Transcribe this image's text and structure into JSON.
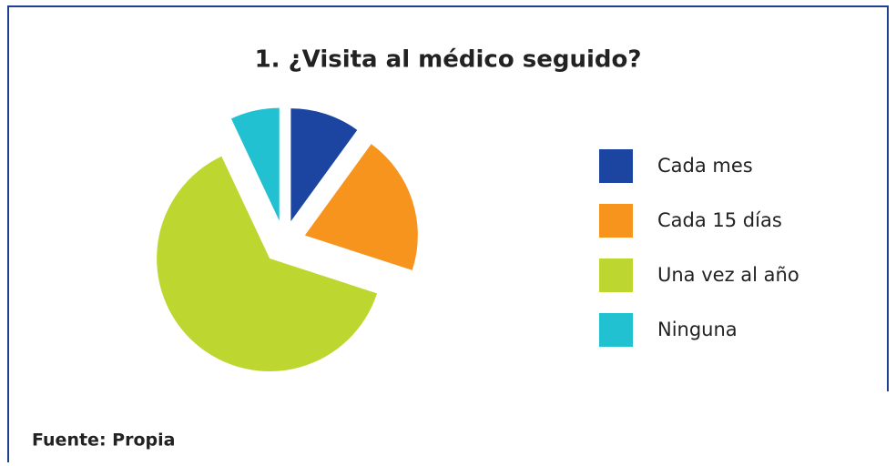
{
  "chart_data": {
    "type": "pie",
    "title": "1. ¿Visita al médico seguido?",
    "categories": [
      "Cada mes",
      "Cada 15 días",
      "Una vez al año",
      "Ninguna"
    ],
    "values": [
      10,
      20,
      63,
      7
    ],
    "colors": [
      "#1b45a0",
      "#f7941d",
      "#bed630",
      "#22c1d1"
    ],
    "exploded": true,
    "legend": "right",
    "source": "Fuente: Propia"
  }
}
